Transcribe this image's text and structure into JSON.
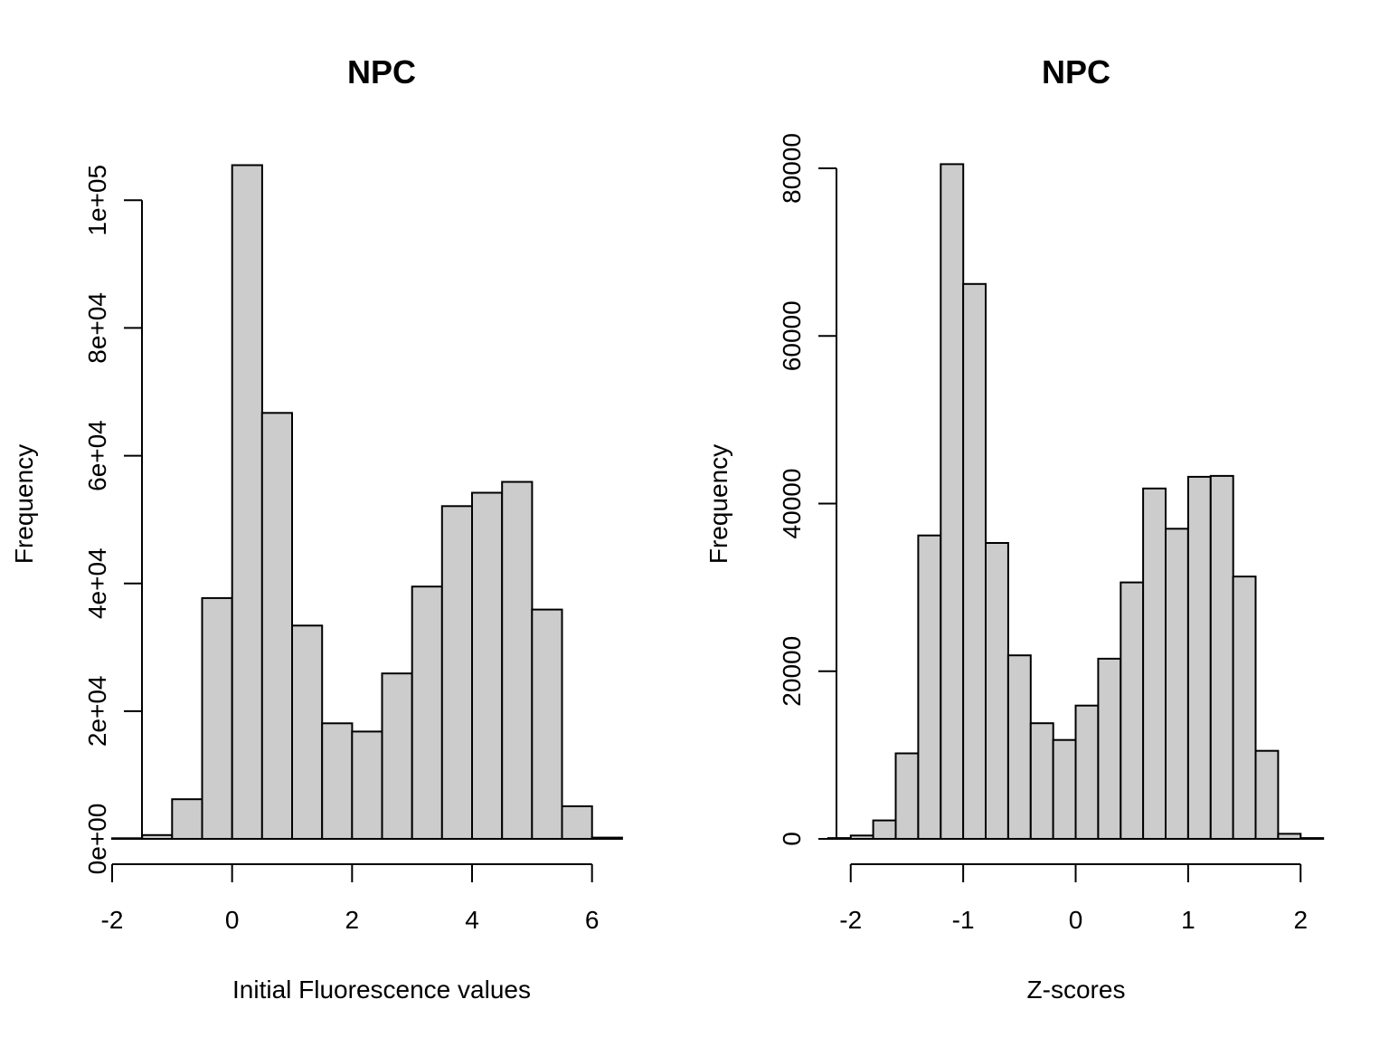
{
  "chart_data": [
    {
      "type": "bar",
      "title": "NPC",
      "xlabel": "Initial Fluorescence values",
      "ylabel": "Frequency",
      "xlim": [
        -2,
        7
      ],
      "ylim": [
        0,
        105000
      ],
      "xticks": [
        -2,
        0,
        2,
        4,
        6
      ],
      "xtick_labels": [
        "-2",
        "0",
        "2",
        "4",
        "6"
      ],
      "yticks": [
        0,
        20000,
        40000,
        60000,
        80000,
        100000
      ],
      "ytick_labels": [
        "0e+00",
        "2e+04",
        "4e+04",
        "6e+04",
        "8e+04",
        "1e+05"
      ],
      "bin_edges": [
        -2.0,
        -1.5,
        -1.0,
        -0.5,
        0.0,
        0.5,
        1.0,
        1.5,
        2.0,
        2.5,
        3.0,
        3.5,
        4.0,
        4.5,
        5.0,
        5.5,
        6.0,
        6.5
      ],
      "values": [
        100,
        600,
        6200,
        37700,
        105500,
        66700,
        33400,
        18100,
        16800,
        25900,
        39500,
        52100,
        54200,
        55900,
        35900,
        5100,
        200
      ],
      "grid": false
    },
    {
      "type": "bar",
      "title": "NPC",
      "xlabel": "Z-scores",
      "ylabel": "Frequency",
      "xlim": [
        -2.4,
        2.4
      ],
      "ylim": [
        0,
        80000
      ],
      "xticks": [
        -2,
        -1,
        0,
        1,
        2
      ],
      "xtick_labels": [
        "-2",
        "-1",
        "0",
        "1",
        "2"
      ],
      "yticks": [
        0,
        20000,
        40000,
        60000,
        80000
      ],
      "ytick_labels": [
        "0",
        "20000",
        "40000",
        "60000",
        "80000"
      ],
      "bin_edges": [
        -2.2,
        -2.0,
        -1.8,
        -1.6,
        -1.4,
        -1.2,
        -1.0,
        -0.8,
        -0.6,
        -0.4,
        -0.2,
        0.0,
        0.2,
        0.4,
        0.6,
        0.8,
        1.0,
        1.2,
        1.4,
        1.6,
        1.8,
        2.0,
        2.2
      ],
      "values": [
        100,
        400,
        2200,
        10200,
        36200,
        80500,
        66200,
        35300,
        21900,
        13800,
        11800,
        15900,
        21500,
        30600,
        41800,
        37000,
        43200,
        43300,
        31300,
        10500,
        600,
        100
      ],
      "grid": false
    }
  ]
}
